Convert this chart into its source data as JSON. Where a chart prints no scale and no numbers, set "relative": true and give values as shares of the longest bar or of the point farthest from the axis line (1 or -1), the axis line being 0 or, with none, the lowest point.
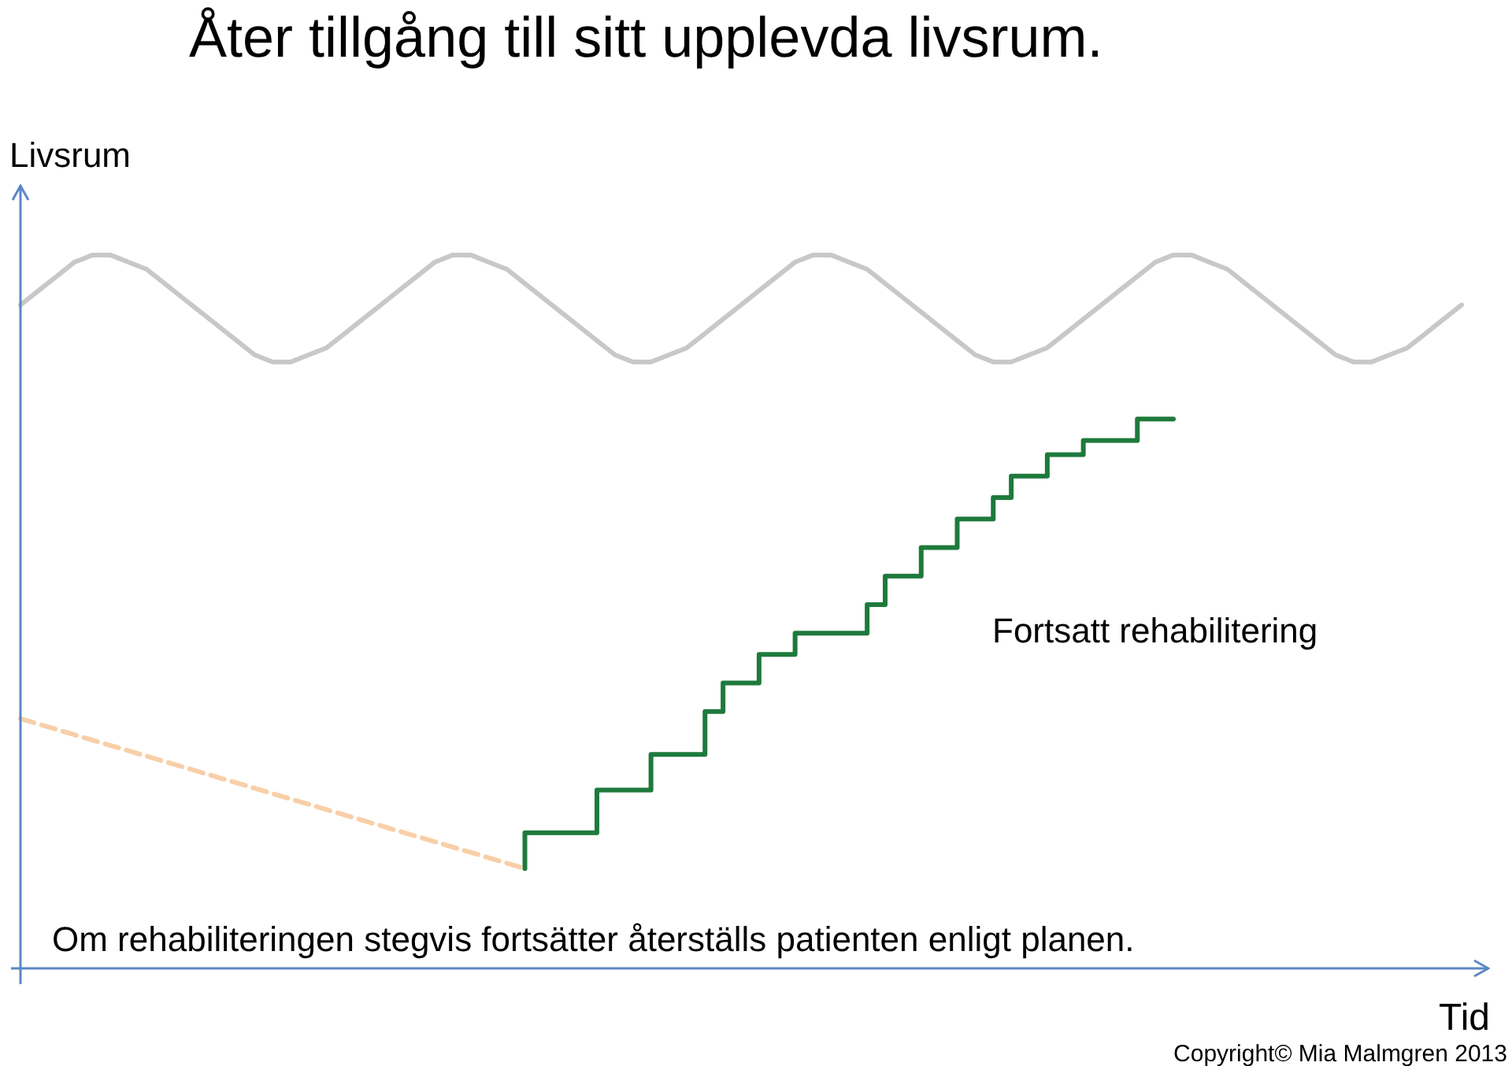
{
  "chart_data": {
    "type": "line",
    "title": "Åter tillgång till sitt upplevda livsrum.",
    "ylabel": "Livsrum",
    "xlabel": "Tid",
    "annotations": [
      "Fortsatt rehabilitering",
      "Om rehabiliteringen stegvis fortsätter återställs patienten enligt planen.",
      "Copyright© Mia Malmgren 2013"
    ],
    "relative": true,
    "tick_labels": false,
    "categories": [
      null,
      null,
      null,
      null,
      null,
      null,
      null,
      null,
      null,
      null,
      null,
      null,
      null,
      null,
      null,
      null,
      null,
      null,
      null,
      null,
      null,
      null,
      null,
      null,
      null,
      null,
      null,
      null,
      null,
      null,
      null,
      null,
      null,
      null,
      null,
      null,
      null,
      null,
      null,
      null,
      null,
      null,
      null,
      null,
      null,
      null,
      null,
      null,
      null,
      null,
      null,
      null,
      null,
      null,
      null,
      null,
      null,
      null,
      null,
      null,
      null,
      null,
      null,
      null,
      null,
      null,
      null,
      null,
      null,
      null,
      null,
      null,
      null,
      null,
      null,
      null,
      null,
      null,
      null,
      null,
      null
    ],
    "series": [
      {
        "type": "line",
        "color": "#c8c8c8",
        "marker": "none",
        "values": [
          0.93,
          0.95,
          0.97,
          0.99,
          1,
          1,
          0.99,
          0.98,
          0.96,
          0.94,
          0.92,
          0.9,
          0.88,
          0.86,
          0.85,
          0.85,
          0.86,
          0.87,
          0.89,
          0.91,
          0.93,
          0.95,
          0.97,
          0.99,
          1,
          1,
          0.99,
          0.98,
          0.96,
          0.94,
          0.92,
          0.9,
          0.88,
          0.86,
          0.85,
          0.85,
          0.86,
          0.87,
          0.89,
          0.91,
          0.93,
          0.95,
          0.97,
          0.99,
          1,
          1,
          0.99,
          0.98,
          0.96,
          0.94,
          0.92,
          0.9,
          0.88,
          0.86,
          0.85,
          0.85,
          0.86,
          0.87,
          0.89,
          0.91,
          0.93,
          0.95,
          0.97,
          0.99,
          1,
          1,
          0.99,
          0.98,
          0.96,
          0.94,
          0.92,
          0.9,
          0.88,
          0.86,
          0.85,
          0.85,
          0.86,
          0.87,
          0.89,
          0.91,
          0.93
        ]
      },
      {
        "type": "line",
        "color": "#f8cfa8",
        "marker": "none",
        "line_style": "dashed",
        "values": [
          0.35,
          null,
          null,
          null,
          null,
          null,
          null,
          null,
          null,
          null,
          null,
          null,
          null,
          null,
          null,
          null,
          null,
          null,
          null,
          null,
          null,
          null,
          null,
          null,
          null,
          null,
          null,
          null,
          0.14,
          null,
          null,
          null,
          null,
          null,
          null,
          null,
          null,
          null,
          null,
          null,
          null,
          null,
          null,
          null,
          null,
          null,
          null,
          null,
          null,
          null,
          null,
          null,
          null,
          null,
          null,
          null,
          null,
          null,
          null,
          null,
          null,
          null,
          null,
          null,
          null,
          null,
          null,
          null,
          null,
          null,
          null,
          null,
          null,
          null,
          null,
          null,
          null,
          null,
          null,
          null,
          null
        ]
      },
      {
        "type": "step",
        "color": "#1e7a3c",
        "marker": "none",
        "values": [
          null,
          null,
          null,
          null,
          null,
          null,
          null,
          null,
          null,
          null,
          null,
          null,
          null,
          null,
          null,
          null,
          null,
          null,
          null,
          null,
          null,
          null,
          null,
          null,
          null,
          null,
          null,
          null,
          0.14,
          null,
          null,
          null,
          0.19,
          null,
          null,
          0.25,
          null,
          null,
          0.3,
          0.36,
          null,
          0.4,
          null,
          0.44,
          null,
          null,
          null,
          0.47,
          0.51,
          null,
          0.55,
          null,
          0.59,
          null,
          0.63,
          0.66,
          null,
          0.69,
          null,
          0.72,
          null,
          null,
          0.74,
          0.77,
          0.77,
          null,
          null,
          null,
          null,
          null,
          null,
          null,
          null,
          null,
          null,
          null,
          null,
          null,
          null,
          null,
          null
        ]
      }
    ]
  }
}
